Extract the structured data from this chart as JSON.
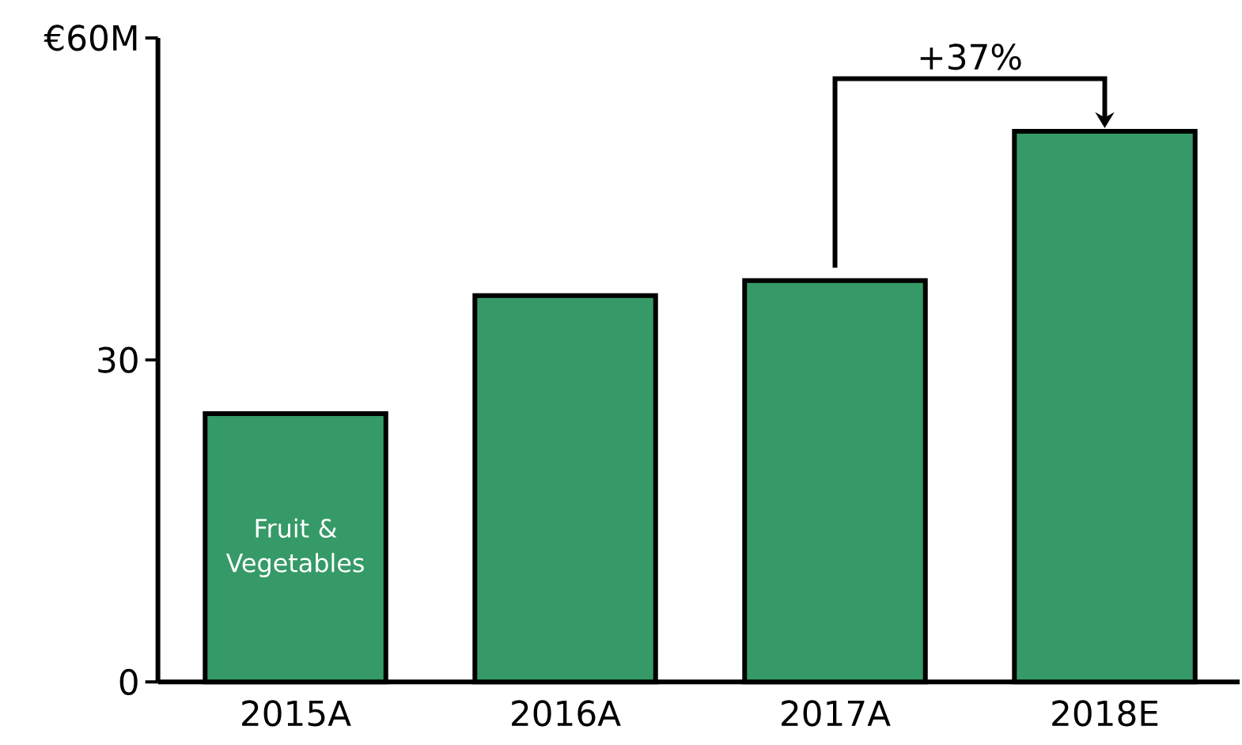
{
  "chart_data": {
    "type": "bar",
    "categories": [
      "2015A",
      "2016A",
      "2017A",
      "2018E"
    ],
    "values": [
      25.0,
      36.0,
      37.4,
      51.3
    ],
    "color": "#359a67",
    "ylim": [
      0,
      60
    ],
    "yticks": [
      0,
      30,
      {
        "value": 60,
        "label": "€60M"
      }
    ],
    "annotations": [
      "Fruit & Vegetables",
      "+37%"
    ]
  }
}
